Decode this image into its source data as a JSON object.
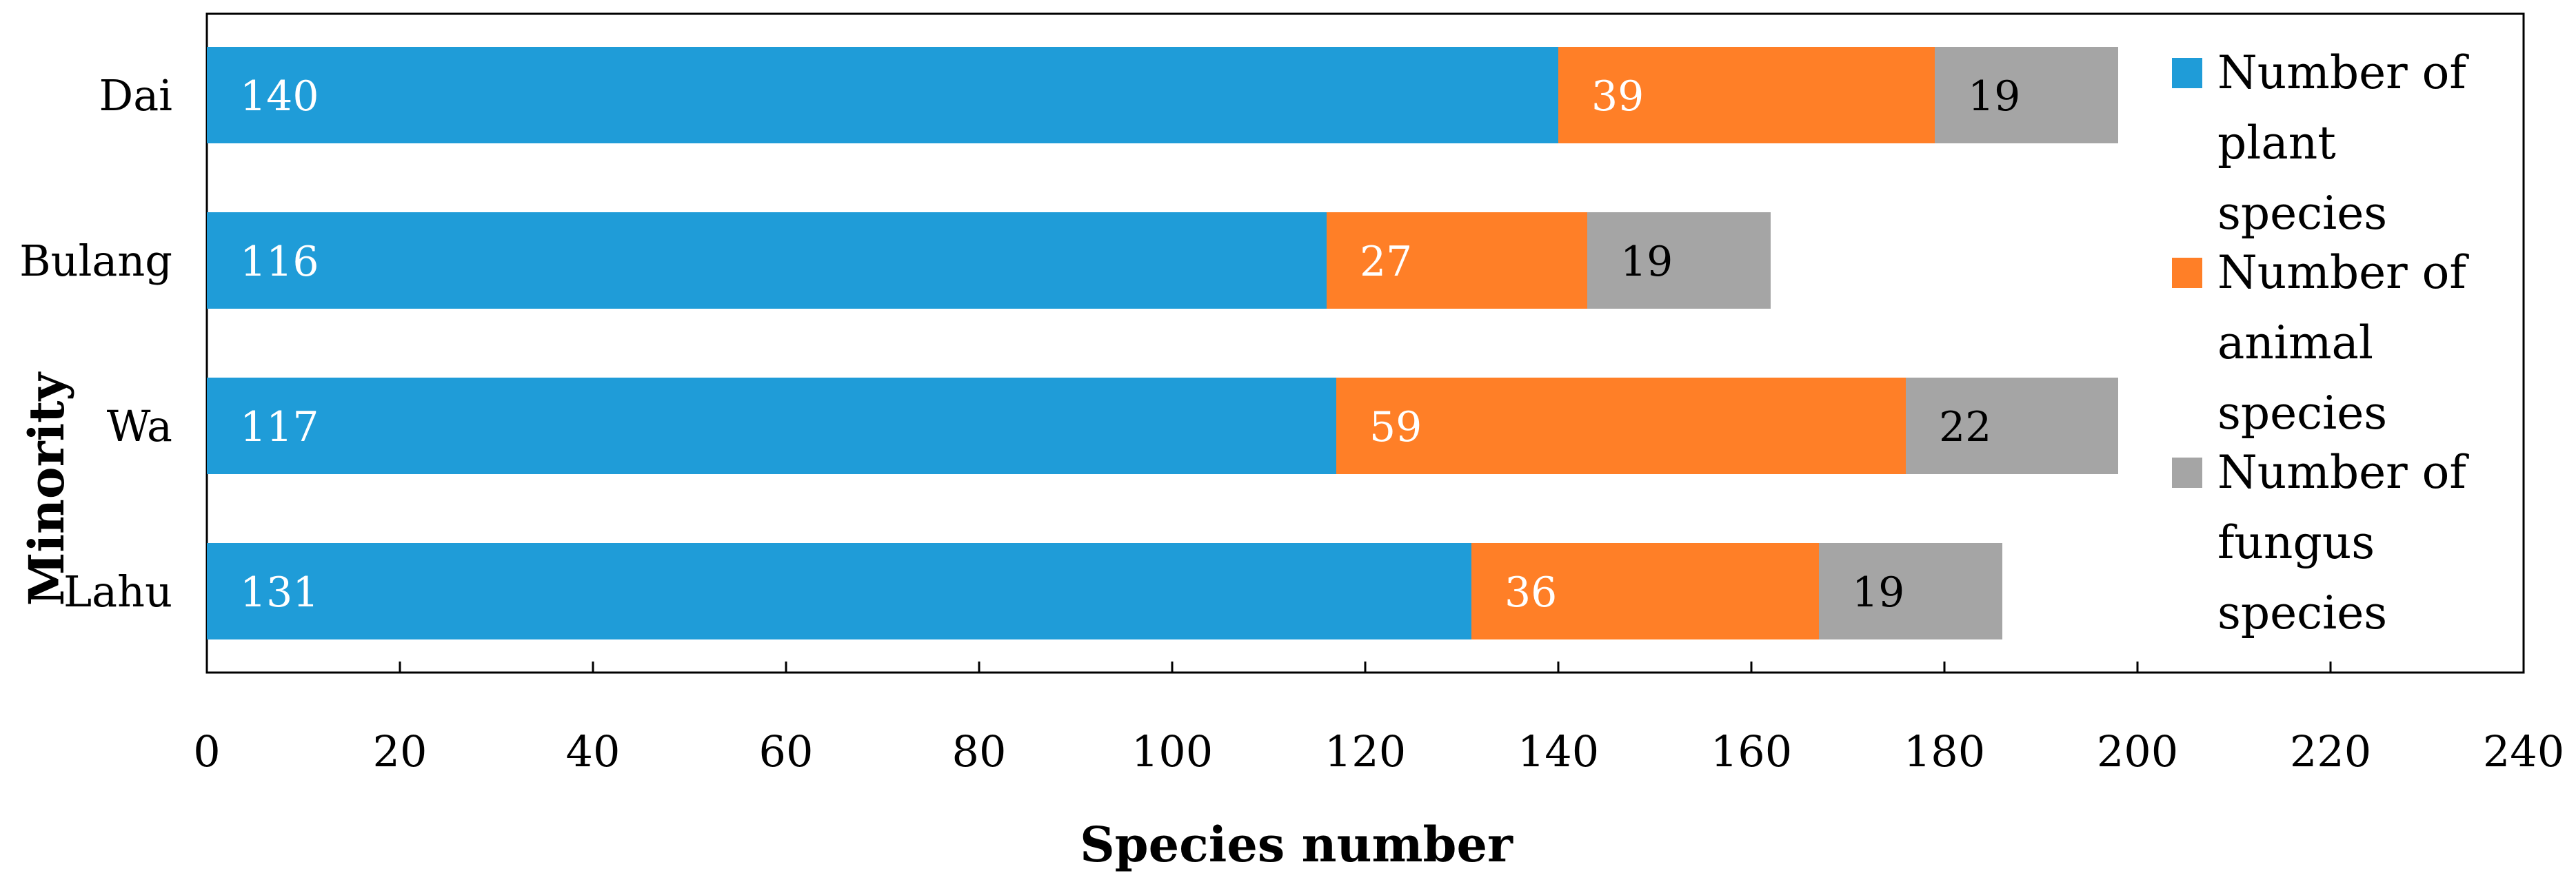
{
  "chart_data": {
    "type": "bar",
    "orientation": "horizontal",
    "stacked": true,
    "categories": [
      "Dai",
      "Bulang",
      "Wa",
      "Lahu"
    ],
    "series": [
      {
        "name": "Number of plant species",
        "legend_lines": [
          "Number of",
          "plant",
          "species"
        ],
        "values": [
          140,
          116,
          117,
          131
        ],
        "color": "#1F9CD8",
        "label_color": "#ffffff"
      },
      {
        "name": "Number of animal species",
        "legend_lines": [
          "Number of",
          "animal",
          "species"
        ],
        "values": [
          39,
          27,
          59,
          36
        ],
        "color": "#FF7F27",
        "label_color": "#ffffff"
      },
      {
        "name": "Number of fungus species",
        "legend_lines": [
          "Number of",
          "fungus",
          "species"
        ],
        "values": [
          19,
          19,
          22,
          19
        ],
        "color": "#A5A5A5",
        "label_color": "#000000"
      }
    ],
    "xlabel": "Species number",
    "ylabel": "Minority",
    "xlim": [
      0,
      240
    ],
    "xticks": [
      0,
      20,
      40,
      60,
      80,
      100,
      120,
      140,
      160,
      180,
      200,
      220,
      240
    ],
    "grid": false,
    "legend": "right"
  }
}
